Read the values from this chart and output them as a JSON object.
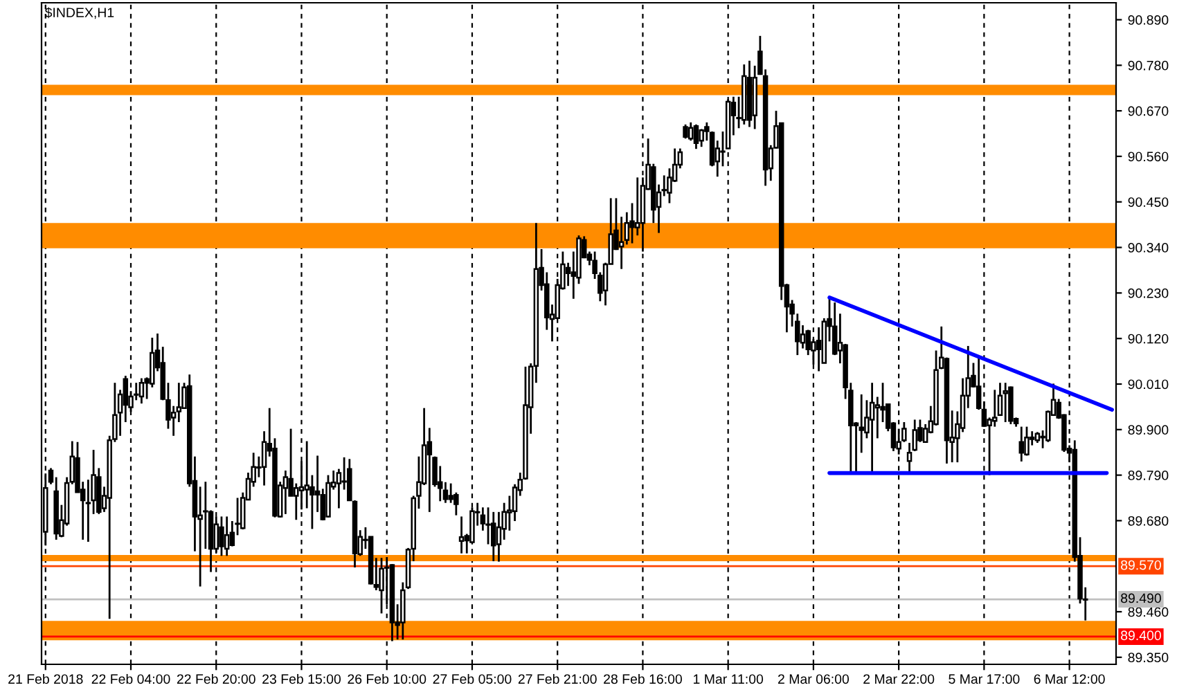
{
  "chart_data": {
    "type": "candlestick",
    "title": "$INDEX,H1",
    "categories": [
      "21 Feb 2018",
      null,
      null,
      null,
      null,
      null,
      null,
      null,
      null,
      null,
      null,
      null,
      null,
      null,
      null,
      null,
      "22 Feb 04:00",
      null,
      null,
      null,
      null,
      null,
      null,
      null,
      null,
      null,
      null,
      null,
      null,
      null,
      null,
      null,
      "22 Feb 20:00",
      null,
      null,
      null,
      null,
      null,
      null,
      null,
      null,
      null,
      null,
      null,
      null,
      null,
      null,
      null,
      "23 Feb 15:00",
      null,
      null,
      null,
      null,
      null,
      null,
      null,
      null,
      null,
      null,
      null,
      null,
      null,
      null,
      null,
      "26 Feb 10:00",
      null,
      null,
      null,
      null,
      null,
      null,
      null,
      null,
      null,
      null,
      null,
      null,
      null,
      null,
      null,
      "27 Feb 05:00",
      null,
      null,
      null,
      null,
      null,
      null,
      null,
      null,
      null,
      null,
      null,
      null,
      null,
      null,
      null,
      "27 Feb 21:00",
      null,
      null,
      null,
      null,
      null,
      null,
      null,
      null,
      null,
      null,
      null,
      null,
      null,
      null,
      null,
      "28 Feb 16:00",
      null,
      null,
      null,
      null,
      null,
      null,
      null,
      null,
      null,
      null,
      null,
      null,
      null,
      null,
      null,
      "1 Mar 11:00",
      null,
      null,
      null,
      null,
      null,
      null,
      null,
      null,
      null,
      null,
      null,
      null,
      null,
      null,
      null,
      "2 Mar 06:00",
      null,
      null,
      null,
      null,
      null,
      null,
      null,
      null,
      null,
      null,
      null,
      null,
      null,
      null,
      null,
      "2 Mar 22:00",
      null,
      null,
      null,
      null,
      null,
      null,
      null,
      null,
      null,
      null,
      null,
      null,
      null,
      null,
      null,
      "5 Mar 17:00",
      null,
      null,
      null,
      null,
      null,
      null,
      null,
      null,
      null,
      null,
      null,
      null,
      null,
      null,
      null,
      "6 Mar 12:00",
      null,
      null,
      null,
      null,
      null,
      null,
      null,
      null
    ],
    "ohlc": [
      [
        89.653,
        89.794,
        89.62,
        89.759
      ],
      [
        89.801,
        89.807,
        89.768,
        89.774
      ],
      [
        89.751,
        89.785,
        89.634,
        89.649
      ],
      [
        89.643,
        89.718,
        89.64,
        89.681
      ],
      [
        89.673,
        89.785,
        89.668,
        89.771
      ],
      [
        89.774,
        89.872,
        89.768,
        89.835
      ],
      [
        89.831,
        89.87,
        89.748,
        89.749
      ],
      [
        89.755,
        89.774,
        89.634,
        89.729
      ],
      [
        89.723,
        89.779,
        89.629,
        89.722
      ],
      [
        89.729,
        89.851,
        89.696,
        89.79
      ],
      [
        89.785,
        89.807,
        89.696,
        89.701
      ],
      [
        89.71,
        89.762,
        89.701,
        89.74
      ],
      [
        89.735,
        89.885,
        89.443,
        89.874
      ],
      [
        89.877,
        90.013,
        89.87,
        89.935
      ],
      [
        89.941,
        89.996,
        89.885,
        89.985
      ],
      [
        90.022,
        90.03,
        89.918,
        89.96
      ],
      [
        89.954,
        89.993,
        89.943,
        89.98
      ],
      [
        89.985,
        90.013,
        89.971,
        89.984
      ],
      [
        89.98,
        90.024,
        89.963,
        90.013
      ],
      [
        90.022,
        90.026,
        89.974,
        90.013
      ],
      [
        90.011,
        90.122,
        90.002,
        90.085
      ],
      [
        90.091,
        90.132,
        90.041,
        90.05
      ],
      [
        90.061,
        90.1,
        89.971,
        89.974
      ],
      [
        89.971,
        90.013,
        89.902,
        89.924
      ],
      [
        89.929,
        89.957,
        89.885,
        89.941
      ],
      [
        89.944,
        90.013,
        89.918,
        89.954
      ],
      [
        89.952,
        90.013,
        89.95,
        90.002
      ],
      [
        90.005,
        90.033,
        89.762,
        89.77
      ],
      [
        89.776,
        89.835,
        89.606,
        89.69
      ],
      [
        89.684,
        89.762,
        89.521,
        89.693
      ],
      [
        89.703,
        89.774,
        89.612,
        89.702
      ],
      [
        89.701,
        89.705,
        89.556,
        89.612
      ],
      [
        89.612,
        89.69,
        89.603,
        89.671
      ],
      [
        89.664,
        89.69,
        89.595,
        89.618
      ],
      [
        89.612,
        89.69,
        89.595,
        89.645
      ],
      [
        89.651,
        89.679,
        89.618,
        89.621
      ],
      [
        89.672,
        89.735,
        89.645,
        89.673
      ],
      [
        89.662,
        89.748,
        89.659,
        89.735
      ],
      [
        89.731,
        89.796,
        89.729,
        89.781
      ],
      [
        89.774,
        89.844,
        89.762,
        89.81
      ],
      [
        89.809,
        89.835,
        89.785,
        89.808
      ],
      [
        89.81,
        89.896,
        89.765,
        89.87
      ],
      [
        89.866,
        89.952,
        89.835,
        89.849
      ],
      [
        89.854,
        89.879,
        89.688,
        89.692
      ],
      [
        89.69,
        89.774,
        89.688,
        89.765
      ],
      [
        89.759,
        89.801,
        89.696,
        89.785
      ],
      [
        89.781,
        89.902,
        89.739,
        89.74
      ],
      [
        89.74,
        89.77,
        89.682,
        89.759
      ],
      [
        89.753,
        89.824,
        89.707,
        89.761
      ],
      [
        89.755,
        89.872,
        89.71,
        89.765
      ],
      [
        89.761,
        89.79,
        89.66,
        89.743
      ],
      [
        89.751,
        89.837,
        89.701,
        89.743
      ],
      [
        89.742,
        89.757,
        89.681,
        89.683
      ],
      [
        89.69,
        89.79,
        89.688,
        89.771
      ],
      [
        89.762,
        89.801,
        89.755,
        89.772
      ],
      [
        89.77,
        89.805,
        89.71,
        89.795
      ],
      [
        89.774,
        89.833,
        89.755,
        89.775
      ],
      [
        89.805,
        89.829,
        89.729,
        89.729
      ],
      [
        89.726,
        89.729,
        89.567,
        89.601
      ],
      [
        89.599,
        89.657,
        89.595,
        89.641
      ],
      [
        89.634,
        89.664,
        89.612,
        89.633
      ],
      [
        89.641,
        89.642,
        89.526,
        89.528
      ],
      [
        89.525,
        89.59,
        89.512,
        89.52
      ],
      [
        89.512,
        89.59,
        89.456,
        89.564
      ],
      [
        89.567,
        89.592,
        89.478,
        89.566
      ],
      [
        89.573,
        89.575,
        89.389,
        89.434
      ],
      [
        89.434,
        89.478,
        89.393,
        89.428
      ],
      [
        89.434,
        89.531,
        89.393,
        89.512
      ],
      [
        89.519,
        89.614,
        89.515,
        89.61
      ],
      [
        89.612,
        89.74,
        89.582,
        89.734
      ],
      [
        89.74,
        89.835,
        89.709,
        89.773
      ],
      [
        89.77,
        89.952,
        89.766,
        89.862
      ],
      [
        89.87,
        89.904,
        89.701,
        89.84
      ],
      [
        89.832,
        89.835,
        89.762,
        89.768
      ],
      [
        89.773,
        89.812,
        89.727,
        89.759
      ],
      [
        89.753,
        89.773,
        89.723,
        89.732
      ],
      [
        89.74,
        89.77,
        89.723,
        89.732
      ],
      [
        89.742,
        89.748,
        89.693,
        89.72
      ],
      [
        89.631,
        89.69,
        89.601,
        89.64
      ],
      [
        89.643,
        89.648,
        89.601,
        89.632
      ],
      [
        89.628,
        89.712,
        89.626,
        89.703
      ],
      [
        89.701,
        89.723,
        89.668,
        89.7
      ],
      [
        89.693,
        89.712,
        89.656,
        89.673
      ],
      [
        89.671,
        89.712,
        89.623,
        89.67
      ],
      [
        89.673,
        89.701,
        89.582,
        89.62
      ],
      [
        89.623,
        89.701,
        89.581,
        89.664
      ],
      [
        89.66,
        89.723,
        89.634,
        89.701
      ],
      [
        89.7,
        89.74,
        89.656,
        89.705
      ],
      [
        89.703,
        89.768,
        89.679,
        89.76
      ],
      [
        89.754,
        89.796,
        89.74,
        89.779
      ],
      [
        89.782,
        90.052,
        89.779,
        89.959
      ],
      [
        89.954,
        90.06,
        89.89,
        90.052
      ],
      [
        90.054,
        90.399,
        90.013,
        90.288
      ],
      [
        90.291,
        90.336,
        90.236,
        90.249
      ],
      [
        90.251,
        90.28,
        90.141,
        90.171
      ],
      [
        90.167,
        90.202,
        90.113,
        90.178
      ],
      [
        90.169,
        90.264,
        90.167,
        90.249
      ],
      [
        90.241,
        90.33,
        90.238,
        90.299
      ],
      [
        90.291,
        90.303,
        90.247,
        90.278
      ],
      [
        90.28,
        90.33,
        90.216,
        90.271
      ],
      [
        90.267,
        90.369,
        90.252,
        90.362
      ],
      [
        90.358,
        90.367,
        90.314,
        90.316
      ],
      [
        90.323,
        90.33,
        90.297,
        90.31
      ],
      [
        90.308,
        90.33,
        90.264,
        90.278
      ],
      [
        90.272,
        90.28,
        90.21,
        90.23
      ],
      [
        90.236,
        90.303,
        90.2,
        90.299
      ],
      [
        90.3,
        90.459,
        90.299,
        90.372
      ],
      [
        90.381,
        90.459,
        90.334,
        90.336
      ],
      [
        90.342,
        90.414,
        90.288,
        90.353
      ],
      [
        90.358,
        90.425,
        90.347,
        90.399
      ],
      [
        90.403,
        90.447,
        90.35,
        90.389
      ],
      [
        90.388,
        90.509,
        90.369,
        90.399
      ],
      [
        90.399,
        90.509,
        90.33,
        90.489
      ],
      [
        90.481,
        90.603,
        90.479,
        90.54
      ],
      [
        90.534,
        90.542,
        90.399,
        90.431
      ],
      [
        90.438,
        90.492,
        90.375,
        90.473
      ],
      [
        90.479,
        90.514,
        90.464,
        90.478
      ],
      [
        90.472,
        90.531,
        90.447,
        90.509
      ],
      [
        90.501,
        90.579,
        90.498,
        90.54
      ],
      [
        90.54,
        90.579,
        90.531,
        90.57
      ],
      [
        90.631,
        90.637,
        90.603,
        90.607
      ],
      [
        90.603,
        90.642,
        90.598,
        90.629
      ],
      [
        90.633,
        90.637,
        90.578,
        90.592
      ],
      [
        90.598,
        90.626,
        90.583,
        90.623
      ],
      [
        90.631,
        90.642,
        90.598,
        90.621
      ],
      [
        90.617,
        90.62,
        90.536,
        90.54
      ],
      [
        90.548,
        90.598,
        90.511,
        90.579
      ],
      [
        90.572,
        90.62,
        90.536,
        90.571
      ],
      [
        90.579,
        90.698,
        90.578,
        90.692
      ],
      [
        90.69,
        90.704,
        90.611,
        90.659
      ],
      [
        90.653,
        90.704,
        90.628,
        90.652
      ],
      [
        90.648,
        90.782,
        90.637,
        90.754
      ],
      [
        90.75,
        90.791,
        90.631,
        90.648
      ],
      [
        90.659,
        90.779,
        90.626,
        90.75
      ],
      [
        90.813,
        90.851,
        90.757,
        90.759
      ],
      [
        90.754,
        90.77,
        90.489,
        90.528
      ],
      [
        90.531,
        90.587,
        90.501,
        90.579
      ],
      [
        90.581,
        90.67,
        90.579,
        90.633
      ],
      [
        90.64,
        90.642,
        90.213,
        90.247
      ],
      [
        90.249,
        90.252,
        90.135,
        90.197
      ],
      [
        90.202,
        90.213,
        90.149,
        90.18
      ],
      [
        90.161,
        90.18,
        90.08,
        90.113
      ],
      [
        90.11,
        90.152,
        90.096,
        90.13
      ],
      [
        90.138,
        90.141,
        90.08,
        90.094
      ],
      [
        90.091,
        90.119,
        90.057,
        90.111
      ],
      [
        90.115,
        90.147,
        90.041,
        90.094
      ],
      [
        90.061,
        90.169,
        90.06,
        90.161
      ],
      [
        90.167,
        90.216,
        90.113,
        90.15
      ],
      [
        90.149,
        90.207,
        90.08,
        90.083
      ],
      [
        90.091,
        90.18,
        90.06,
        90.11
      ],
      [
        90.104,
        90.107,
        89.974,
        90.002
      ],
      [
        89.994,
        90.013,
        89.796,
        89.91
      ],
      [
        89.915,
        89.918,
        89.796,
        89.91
      ],
      [
        89.905,
        89.985,
        89.844,
        89.899
      ],
      [
        89.893,
        89.971,
        89.879,
        89.929
      ],
      [
        89.924,
        90.013,
        89.796,
        89.965
      ],
      [
        89.953,
        89.979,
        89.879,
        89.959
      ],
      [
        89.955,
        90.013,
        89.918,
        89.948
      ],
      [
        89.961,
        89.963,
        89.896,
        89.904
      ],
      [
        89.915,
        89.918,
        89.848,
        89.857
      ],
      [
        89.854,
        89.902,
        89.84,
        89.87
      ],
      [
        89.874,
        89.918,
        89.87,
        89.902
      ],
      [
        89.824,
        89.868,
        89.799,
        89.844
      ],
      [
        89.851,
        89.924,
        89.848,
        89.899
      ],
      [
        89.904,
        89.924,
        89.87,
        89.874
      ],
      [
        89.87,
        89.913,
        89.868,
        89.902
      ],
      [
        89.894,
        89.957,
        89.891,
        89.92
      ],
      [
        89.913,
        90.091,
        89.91,
        90.044
      ],
      [
        90.049,
        90.149,
        90.046,
        90.074
      ],
      [
        90.071,
        90.074,
        89.818,
        89.874
      ],
      [
        89.87,
        89.946,
        89.821,
        89.881
      ],
      [
        89.879,
        89.944,
        89.821,
        89.913
      ],
      [
        89.904,
        90.024,
        89.894,
        89.982
      ],
      [
        89.982,
        90.102,
        89.952,
        90.024
      ],
      [
        90.03,
        90.061,
        90.002,
        90.004
      ],
      [
        90.004,
        90.078,
        89.948,
        89.952
      ],
      [
        89.948,
        89.968,
        89.907,
        89.909
      ],
      [
        89.91,
        89.929,
        89.79,
        89.924
      ],
      [
        89.921,
        89.996,
        89.907,
        89.929
      ],
      [
        89.935,
        90.013,
        89.933,
        89.982
      ],
      [
        89.988,
        90.013,
        89.918,
        89.993
      ],
      [
        90.002,
        90.004,
        89.913,
        89.921
      ],
      [
        89.926,
        89.929,
        89.907,
        89.915
      ],
      [
        89.87,
        89.907,
        89.823,
        89.844
      ],
      [
        89.84,
        89.907,
        89.837,
        89.881
      ],
      [
        89.877,
        89.896,
        89.862,
        89.881
      ],
      [
        89.874,
        89.894,
        89.868,
        89.89
      ],
      [
        89.883,
        89.898,
        89.855,
        89.881
      ],
      [
        89.874,
        89.946,
        89.87,
        89.943
      ],
      [
        89.935,
        90.011,
        89.933,
        89.972
      ],
      [
        89.965,
        89.974,
        89.926,
        89.929
      ],
      [
        89.935,
        89.937,
        89.846,
        89.851
      ],
      [
        89.854,
        89.862,
        89.821,
        89.844
      ],
      [
        89.851,
        89.874,
        89.581,
        89.592
      ],
      [
        89.595,
        89.64,
        89.48,
        89.492
      ],
      [
        89.489,
        89.519,
        89.439,
        89.49
      ],
      null,
      null,
      null,
      null,
      null
    ],
    "series": [
      {
        "type": "line",
        "color": "#0000ff",
        "values": [
          null,
          null,
          null,
          null,
          null,
          null,
          null,
          null,
          null,
          null,
          null,
          null,
          null,
          null,
          null,
          null,
          null,
          null,
          null,
          null,
          null,
          null,
          null,
          null,
          null,
          null,
          null,
          null,
          null,
          null,
          null,
          null,
          null,
          null,
          null,
          null,
          null,
          null,
          null,
          null,
          null,
          null,
          null,
          null,
          null,
          null,
          null,
          null,
          null,
          null,
          null,
          null,
          null,
          null,
          null,
          null,
          null,
          null,
          null,
          null,
          null,
          null,
          null,
          null,
          null,
          null,
          null,
          null,
          null,
          null,
          null,
          null,
          null,
          null,
          null,
          null,
          null,
          null,
          null,
          null,
          null,
          null,
          null,
          null,
          null,
          null,
          null,
          null,
          null,
          null,
          null,
          null,
          null,
          null,
          null,
          null,
          null,
          null,
          null,
          null,
          null,
          null,
          null,
          null,
          null,
          null,
          null,
          null,
          null,
          null,
          null,
          null,
          null,
          null,
          null,
          null,
          null,
          null,
          null,
          null,
          null,
          null,
          null,
          null,
          null,
          null,
          null,
          null,
          null,
          null,
          null,
          null,
          null,
          null,
          null,
          null,
          null,
          null,
          null,
          null,
          null,
          null,
          null,
          null,
          null,
          null,
          null,
          90.219,
          null,
          null,
          null,
          null,
          null,
          null,
          null,
          null,
          null,
          null,
          null,
          null,
          null,
          null,
          null,
          null,
          null,
          null,
          null,
          null,
          null,
          null,
          null,
          null,
          null,
          null,
          null,
          null,
          null,
          null,
          null,
          null,
          null,
          null,
          null,
          null,
          null,
          null,
          null,
          null,
          null,
          null,
          null,
          null,
          null,
          null,
          null,
          null,
          null,
          null,
          null,
          null,
          89.948
        ]
      },
      {
        "type": "line",
        "color": "#0000ff",
        "values": [
          null,
          null,
          null,
          null,
          null,
          null,
          null,
          null,
          null,
          null,
          null,
          null,
          null,
          null,
          null,
          null,
          null,
          null,
          null,
          null,
          null,
          null,
          null,
          null,
          null,
          null,
          null,
          null,
          null,
          null,
          null,
          null,
          null,
          null,
          null,
          null,
          null,
          null,
          null,
          null,
          null,
          null,
          null,
          null,
          null,
          null,
          null,
          null,
          null,
          null,
          null,
          null,
          null,
          null,
          null,
          null,
          null,
          null,
          null,
          null,
          null,
          null,
          null,
          null,
          null,
          null,
          null,
          null,
          null,
          null,
          null,
          null,
          null,
          null,
          null,
          null,
          null,
          null,
          null,
          null,
          null,
          null,
          null,
          null,
          null,
          null,
          null,
          null,
          null,
          null,
          null,
          null,
          null,
          null,
          null,
          null,
          null,
          null,
          null,
          null,
          null,
          null,
          null,
          null,
          null,
          null,
          null,
          null,
          null,
          null,
          null,
          null,
          null,
          null,
          null,
          null,
          null,
          null,
          null,
          null,
          null,
          null,
          null,
          null,
          null,
          null,
          null,
          null,
          null,
          null,
          null,
          null,
          null,
          null,
          null,
          null,
          null,
          null,
          null,
          null,
          null,
          null,
          null,
          null,
          null,
          null,
          null,
          89.795,
          null,
          null,
          null,
          null,
          null,
          null,
          null,
          null,
          null,
          null,
          null,
          null,
          null,
          null,
          null,
          null,
          null,
          null,
          null,
          null,
          null,
          null,
          null,
          null,
          null,
          null,
          null,
          null,
          null,
          null,
          null,
          null,
          null,
          null,
          null,
          null,
          null,
          null,
          null,
          null,
          null,
          null,
          null,
          null,
          null,
          null,
          null,
          null,
          null,
          null,
          null,
          89.795,
          null
        ]
      }
    ],
    "ylim": [
      89.333,
      90.931
    ],
    "yticks": [
      {
        "value": 89.35,
        "label": "89.350"
      },
      {
        "value": 89.46,
        "label": "89.460"
      },
      {
        "value": 89.68,
        "label": "89.680"
      },
      {
        "value": 89.79,
        "label": "89.790"
      },
      {
        "value": 89.9,
        "label": "89.900"
      },
      {
        "value": 90.01,
        "label": "90.010"
      },
      {
        "value": 90.12,
        "label": "90.120"
      },
      {
        "value": 90.23,
        "label": "90.230"
      },
      {
        "value": 90.34,
        "label": "90.340"
      },
      {
        "value": 90.45,
        "label": "90.450"
      },
      {
        "value": 90.56,
        "label": "90.560"
      },
      {
        "value": 90.67,
        "label": "90.670"
      },
      {
        "value": 90.78,
        "label": "90.780"
      },
      {
        "value": 90.89,
        "label": "90.890"
      }
    ],
    "bands": [
      {
        "axis": "y",
        "from": 90.708,
        "to": 90.733,
        "color": "#ff8c00"
      },
      {
        "axis": "y",
        "from": 90.338,
        "to": 90.399,
        "color": "#ff8c00"
      },
      {
        "axis": "y",
        "from": 89.582,
        "to": 89.597,
        "color": "#ff8c00"
      },
      {
        "axis": "y",
        "from": 89.391,
        "to": 89.438,
        "color": "#ff8c00"
      }
    ],
    "ref_lines": [
      {
        "axis": "y",
        "value": 89.57,
        "label": "89.570",
        "color": "#ff4500"
      },
      {
        "axis": "y",
        "value": 89.49,
        "label": "89.490",
        "color": "#c0c0c0"
      },
      {
        "axis": "y",
        "value": 89.4,
        "label": "89.400",
        "color": "#ff0000"
      }
    ],
    "grid": "x"
  }
}
